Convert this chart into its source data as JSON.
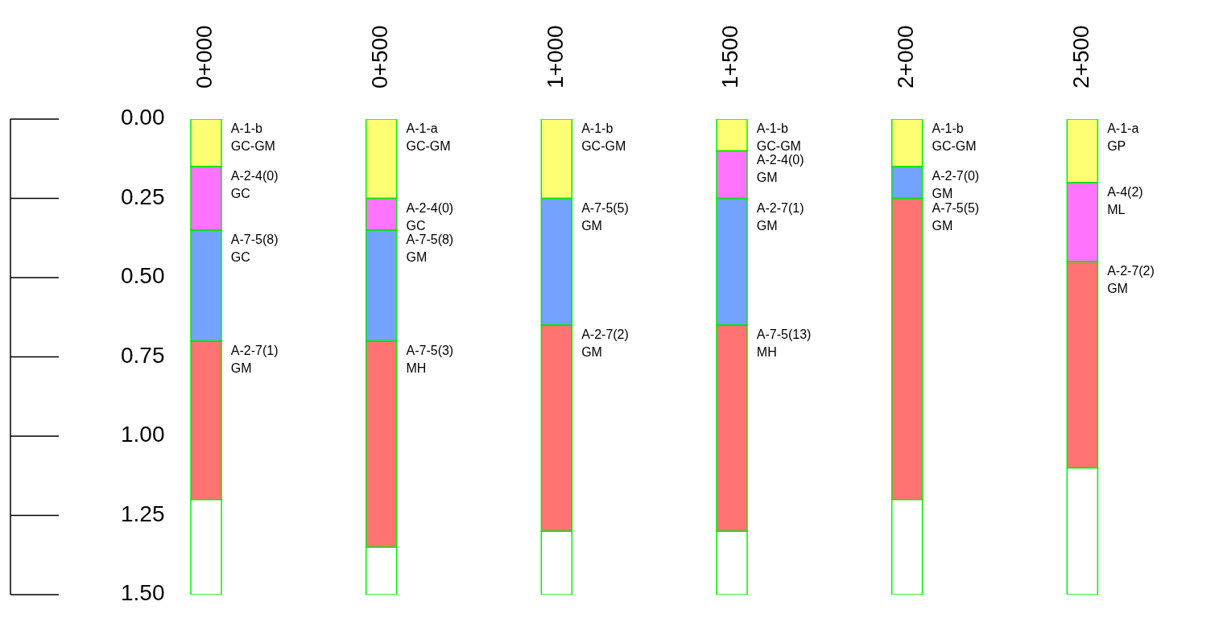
{
  "chart_data": {
    "type": "bar",
    "stacked": true,
    "categories": [
      "0+000",
      "0+500",
      "1+000",
      "1+500",
      "2+000",
      "2+500"
    ],
    "ylim": [
      1.5,
      0
    ],
    "yticks": [
      {
        "value": 0,
        "label": "0.00"
      },
      {
        "value": 0.25,
        "label": "0.25"
      },
      {
        "value": 0.5,
        "label": "0.50"
      },
      {
        "value": 0.75,
        "label": "0.75"
      },
      {
        "value": 1,
        "label": "1.00"
      },
      {
        "value": 1.25,
        "label": "1.25"
      },
      {
        "value": 1.5,
        "label": "1.50"
      }
    ],
    "series": [
      {
        "values": [
          0.15,
          0.25,
          0.25,
          0.1,
          0.15,
          0.2
        ],
        "colors": [
          "#ffff00",
          "#ffff00",
          "#ffff00",
          "#ffff00",
          "#ffff00",
          "#ffff00"
        ]
      },
      {
        "values": [
          0.2,
          0.1,
          0.4,
          0.15,
          0.1,
          0.25
        ],
        "colors": [
          "#ff00ff",
          "#ff00ff",
          "#0055ff",
          "#ff00ff",
          "#0055ff",
          "#ff00ff"
        ]
      },
      {
        "values": [
          0.35,
          0.35,
          0.65,
          0.4,
          0.95,
          0.65
        ],
        "colors": [
          "#0055ff",
          "#0055ff",
          "#ff0000",
          "#0055ff",
          "#ff0000",
          "#ff0000"
        ]
      },
      {
        "values": [
          0.5,
          0.65,
          null,
          0.65,
          null,
          null
        ],
        "colors": [
          "#ff0000",
          "#ff0000",
          null,
          "#ff0000",
          null,
          null
        ]
      },
      {
        "values": [
          0.3,
          0.15,
          0.2,
          0.2,
          0.3,
          0.4
        ],
        "colors": [
          "#ffffff",
          "#ffffff",
          "#ffffff",
          "#ffffff",
          "#ffffff",
          "#ffffff"
        ]
      }
    ],
    "annotations": [
      {
        "text": "A-1-b\nGC-GM",
        "x": "0+000",
        "y": 0
      },
      {
        "text": "A-2-4(0)\nGC",
        "x": "0+000",
        "y": 0.15
      },
      {
        "text": "A-7-5(8)\nGC",
        "x": "0+000",
        "y": 0.35
      },
      {
        "text": "A-2-7(1)\nGM",
        "x": "0+000",
        "y": 0.7
      },
      {
        "text": "A-1-a\nGC-GM",
        "x": "0+500",
        "y": 0
      },
      {
        "text": "A-2-4(0)\nGC",
        "x": "0+500",
        "y": 0.25
      },
      {
        "text": "A-7-5(8)\nGM",
        "x": "0+500",
        "y": 0.35
      },
      {
        "text": "A-7-5(3)\nMH",
        "x": "0+500",
        "y": 0.7
      },
      {
        "text": "A-1-b\nGC-GM",
        "x": "1+000",
        "y": 0
      },
      {
        "text": "A-7-5(5)\nGM",
        "x": "1+000",
        "y": 0.25
      },
      {
        "text": "A-2-7(2)\nGM",
        "x": "1+000",
        "y": 0.65
      },
      {
        "text": "A-1-b\nGC-GM",
        "x": "1+500",
        "y": 0
      },
      {
        "text": "A-2-4(0)\nGM",
        "x": "1+500",
        "y": 0.1
      },
      {
        "text": "A-2-7(1)\nGM",
        "x": "1+500",
        "y": 0.25
      },
      {
        "text": "A-7-5(13)\nMH",
        "x": "1+500",
        "y": 0.65
      },
      {
        "text": "A-1-b\nGC-GM",
        "x": "2+000",
        "y": 0
      },
      {
        "text": "A-2-7(0)\nGM",
        "x": "2+000",
        "y": 0.15
      },
      {
        "text": "A-7-5(5)\nGM",
        "x": "2+000",
        "y": 0.25
      },
      {
        "text": "A-1-a\nGP",
        "x": "2+500",
        "y": 0
      },
      {
        "text": "A-4(2)\nML",
        "x": "2+500",
        "y": 0.2
      },
      {
        "text": "A-2-7(2)\nGM",
        "x": "2+500",
        "y": 0.45
      }
    ]
  }
}
